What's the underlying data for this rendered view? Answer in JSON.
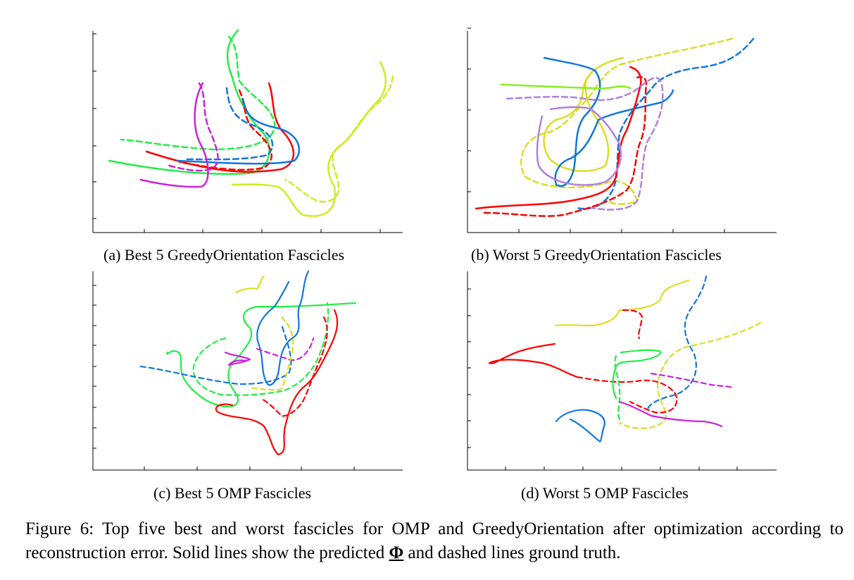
{
  "panels": [
    {
      "caption": "(a) Best 5 GreedyOrientation Fascicles"
    },
    {
      "caption": "(b) Worst 5 GreedyOrientation Fascicles"
    },
    {
      "caption": "(c) Best 5 OMP Fascicles"
    },
    {
      "caption": "(d) Worst 5 OMP Fascicles"
    }
  ],
  "figure_caption": {
    "before": "Figure 6: Top five best and worst fascicles for OMP and GreedyOrientation after optimization according to reconstruction error. Solid lines show the predicted ",
    "symbol": "Φ",
    "after": " and dashed lines ground truth."
  },
  "colors": {
    "red": "#ff0000",
    "green": "#22ee44",
    "blue": "#1177dd",
    "magenta": "#cc22dd",
    "yellow": "#ccee22",
    "lavender": "#b080e0",
    "axis": "#000000"
  }
}
